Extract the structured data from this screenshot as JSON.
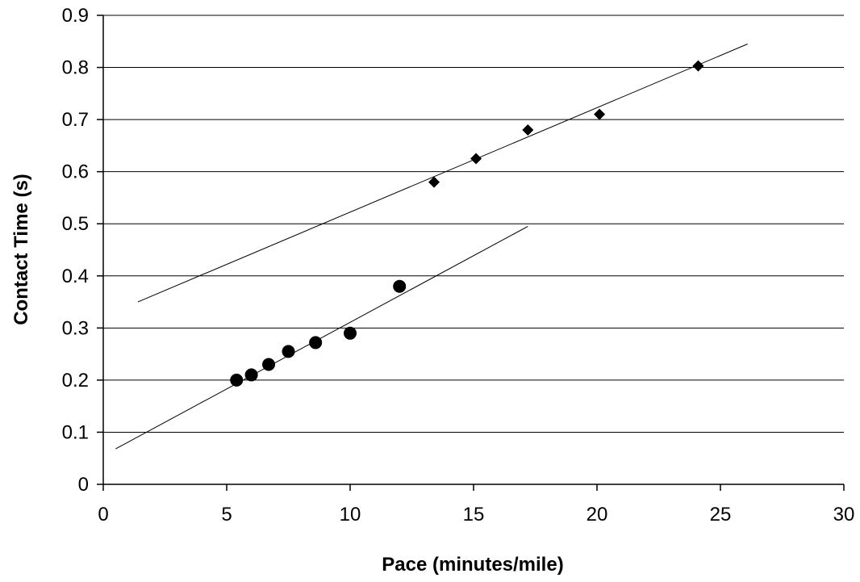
{
  "chart_data": {
    "type": "scatter",
    "xlabel": "Pace (minutes/mile)",
    "ylabel": "Contact Time (s)",
    "xlim": [
      0,
      30
    ],
    "ylim": [
      0,
      0.9
    ],
    "x_ticks": [
      0,
      5,
      10,
      15,
      20,
      25,
      30
    ],
    "y_ticks": [
      0,
      0.1,
      0.2,
      0.3,
      0.4,
      0.5,
      0.6,
      0.7,
      0.8,
      0.9
    ],
    "x_tick_labels": [
      "0",
      "5",
      "10",
      "15",
      "20",
      "25",
      "30"
    ],
    "y_tick_labels": [
      "0",
      "0.1",
      "0.2",
      "0.3",
      "0.4",
      "0.5",
      "0.6",
      "0.7",
      "0.8",
      "0.9"
    ],
    "grid": "horizontal",
    "legend": "none",
    "series": [
      {
        "marker": "circle",
        "color": "#000000",
        "points": [
          {
            "x": 5.4,
            "y": 0.2
          },
          {
            "x": 6.0,
            "y": 0.21
          },
          {
            "x": 6.7,
            "y": 0.23
          },
          {
            "x": 7.5,
            "y": 0.255
          },
          {
            "x": 8.6,
            "y": 0.272
          },
          {
            "x": 10.0,
            "y": 0.29
          },
          {
            "x": 12.0,
            "y": 0.38
          }
        ],
        "trendline": {
          "x": [
            0.5,
            17.2
          ],
          "y": [
            0.068,
            0.495
          ]
        }
      },
      {
        "marker": "diamond",
        "color": "#000000",
        "points": [
          {
            "x": 13.4,
            "y": 0.58
          },
          {
            "x": 15.1,
            "y": 0.625
          },
          {
            "x": 17.2,
            "y": 0.68
          },
          {
            "x": 20.1,
            "y": 0.71
          },
          {
            "x": 24.1,
            "y": 0.803
          }
        ],
        "trendline": {
          "x": [
            1.4,
            26.1
          ],
          "y": [
            0.35,
            0.845
          ]
        }
      }
    ]
  }
}
